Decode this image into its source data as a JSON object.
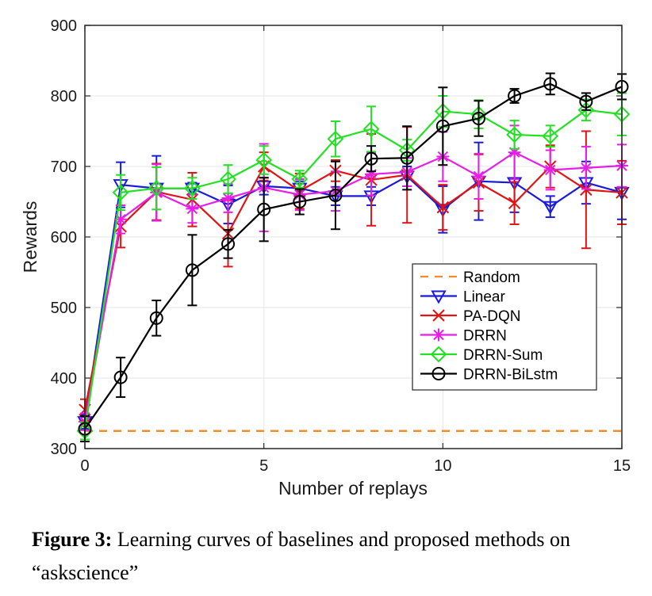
{
  "chart_data": {
    "type": "line",
    "xlabel": "Number of replays",
    "ylabel": "Rewards",
    "xlim": [
      0,
      15
    ],
    "ylim": [
      300,
      900
    ],
    "xticks": [
      0,
      5,
      10,
      15
    ],
    "yticks": [
      300,
      400,
      500,
      600,
      700,
      800,
      900
    ],
    "grid": true,
    "legend_position": "center-right",
    "series": [
      {
        "name": "Random",
        "color": "#f28c28",
        "style": "dashed",
        "marker": "none",
        "x": [
          0,
          15
        ],
        "y": [
          325,
          325
        ],
        "err": []
      },
      {
        "name": "Linear",
        "color": "#1a1adb",
        "style": "solid",
        "marker": "triangle-down",
        "x": [
          0,
          1,
          2,
          3,
          4,
          5,
          6,
          7,
          8,
          9,
          10,
          11,
          12,
          13,
          14,
          15
        ],
        "y": [
          338,
          674,
          669,
          669,
          646,
          672,
          669,
          658,
          658,
          686,
          639,
          679,
          677,
          643,
          677,
          663
        ],
        "err": [
          10,
          32,
          46,
          8,
          27,
          12,
          10,
          13,
          13,
          14,
          33,
          55,
          42,
          15,
          30,
          38
        ]
      },
      {
        "name": "PA-DQN",
        "color": "#e01414",
        "style": "solid",
        "marker": "x",
        "x": [
          0,
          1,
          2,
          3,
          4,
          5,
          6,
          7,
          8,
          9,
          10,
          11,
          12,
          13,
          14,
          15
        ],
        "y": [
          355,
          615,
          664,
          653,
          605,
          700,
          665,
          694,
          681,
          688,
          642,
          677,
          648,
          700,
          667,
          663
        ],
        "err": [
          15,
          30,
          40,
          38,
          47,
          20,
          25,
          15,
          65,
          68,
          32,
          40,
          30,
          30,
          83,
          45
        ]
      },
      {
        "name": "DRRN",
        "color": "#e81ee8",
        "style": "solid",
        "marker": "asterisk",
        "x": [
          0,
          1,
          2,
          3,
          4,
          5,
          6,
          7,
          8,
          9,
          10,
          11,
          12,
          13,
          14,
          15
        ],
        "y": [
          338,
          625,
          663,
          640,
          655,
          670,
          660,
          665,
          689,
          692,
          714,
          686,
          720,
          695,
          698,
          701
        ],
        "err": [
          12,
          20,
          40,
          20,
          20,
          62,
          22,
          28,
          30,
          20,
          35,
          32,
          38,
          28,
          30,
          30
        ]
      },
      {
        "name": "DRRN-Sum",
        "color": "#22e022",
        "style": "solid",
        "marker": "diamond",
        "x": [
          0,
          1,
          2,
          3,
          4,
          5,
          6,
          7,
          8,
          9,
          10,
          11,
          12,
          13,
          14,
          15
        ],
        "y": [
          325,
          663,
          669,
          669,
          682,
          709,
          682,
          739,
          753,
          723,
          778,
          774,
          745,
          743,
          780,
          774
        ],
        "err": [
          12,
          25,
          30,
          15,
          20,
          20,
          12,
          25,
          32,
          15,
          22,
          20,
          20,
          15,
          15,
          30
        ]
      },
      {
        "name": "DRRN-BiLstm",
        "color": "#000000",
        "style": "solid",
        "marker": "circle",
        "x": [
          0,
          1,
          2,
          3,
          4,
          5,
          6,
          7,
          8,
          9,
          10,
          11,
          12,
          13,
          14,
          15
        ],
        "y": [
          328,
          401,
          485,
          553,
          590,
          639,
          650,
          659,
          711,
          712,
          757,
          768,
          800,
          817,
          792,
          813
        ],
        "err": [
          18,
          28,
          25,
          50,
          20,
          45,
          18,
          48,
          18,
          45,
          55,
          25,
          10,
          15,
          12,
          18
        ]
      }
    ]
  },
  "caption": {
    "label": "Figure 3:",
    "text": " Learning curves of baselines and proposed methods on “askscience”"
  }
}
